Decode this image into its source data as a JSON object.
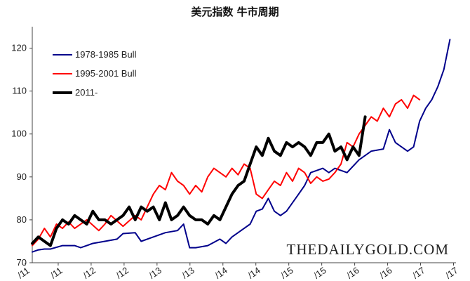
{
  "chart_data": {
    "type": "line",
    "title": "美元指数 牛市周期",
    "ylim": [
      70,
      125
    ],
    "y_ticks": [
      70,
      80,
      90,
      100,
      110,
      120
    ],
    "x_tick_labels": [
      "/11",
      "/11",
      "/12",
      "/12",
      "/13",
      "/13",
      "/14",
      "/14",
      "/15",
      "/15",
      "/16",
      "/16",
      "/17",
      "/17"
    ],
    "xlim": [
      0,
      140
    ],
    "grid": false,
    "legend_position": "top-left",
    "watermark": "THEDAILYGOLD.COM",
    "series": [
      {
        "name": "1978-1985 Bull",
        "color": "#00008B",
        "width": 2,
        "x": [
          0,
          2,
          4,
          6,
          10,
          14,
          16,
          20,
          24,
          28,
          30,
          34,
          36,
          40,
          44,
          48,
          50,
          52,
          54,
          58,
          62,
          64,
          66,
          70,
          72,
          74,
          76,
          78,
          80,
          82,
          84,
          88,
          90,
          92,
          94,
          96,
          98,
          100,
          104,
          108,
          110,
          112,
          116,
          118,
          120,
          122,
          124,
          126,
          128,
          130,
          132,
          134,
          136,
          138
        ],
        "y": [
          72.5,
          73,
          73.2,
          73.2,
          74,
          74,
          73.5,
          74.5,
          75,
          75.5,
          76.8,
          77,
          75,
          76,
          77,
          77.5,
          79,
          73.5,
          73.5,
          74,
          75.5,
          74.5,
          76,
          78,
          79,
          82,
          82.5,
          85,
          82,
          81,
          82,
          86,
          88,
          91,
          91.5,
          92,
          91,
          92,
          91,
          94,
          95,
          96,
          96.5,
          101,
          98,
          97,
          96,
          97,
          103,
          106,
          108,
          111,
          115,
          122
        ]
      },
      {
        "name": "1995-2001 Bull",
        "color": "#FF0000",
        "width": 2,
        "x": [
          0,
          2,
          4,
          6,
          8,
          10,
          12,
          14,
          18,
          22,
          24,
          26,
          30,
          34,
          36,
          38,
          40,
          42,
          44,
          46,
          48,
          50,
          52,
          54,
          56,
          58,
          60,
          62,
          64,
          66,
          68,
          70,
          72,
          74,
          76,
          78,
          80,
          82,
          84,
          86,
          88,
          90,
          92,
          94,
          96,
          98,
          100,
          102,
          104,
          106,
          108,
          110,
          112,
          114,
          116,
          118,
          120,
          122,
          124,
          126,
          128
        ],
        "y": [
          74,
          75.5,
          78,
          76,
          79,
          78,
          79.5,
          78,
          80,
          77.5,
          79,
          81,
          78.5,
          81,
          80,
          83,
          86,
          88,
          87,
          91,
          89,
          88,
          86,
          88,
          86.5,
          90,
          92,
          91,
          90,
          92,
          90.5,
          93,
          92,
          86,
          85,
          87,
          89,
          88,
          91,
          89,
          92,
          91,
          88.5,
          90,
          89,
          89.5,
          91,
          93,
          98,
          97,
          100,
          102,
          104,
          103,
          106,
          104,
          107,
          108,
          106,
          109,
          108
        ]
      },
      {
        "name": "2011-",
        "color": "#000000",
        "width": 4,
        "x": [
          0,
          2,
          4,
          6,
          8,
          10,
          12,
          14,
          16,
          18,
          20,
          22,
          24,
          26,
          28,
          30,
          32,
          34,
          36,
          38,
          40,
          42,
          44,
          46,
          48,
          50,
          52,
          54,
          56,
          58,
          60,
          62,
          64,
          66,
          68,
          70,
          72,
          74,
          76,
          78,
          80,
          82,
          84,
          86,
          88,
          90,
          92,
          94,
          96,
          98,
          100,
          102,
          104,
          106,
          108,
          110
        ],
        "y": [
          74.5,
          76,
          75,
          74,
          78,
          80,
          79,
          81,
          80,
          79,
          82,
          80,
          80,
          79,
          80,
          81,
          83,
          80,
          83,
          82,
          83,
          80,
          84,
          80,
          81,
          83,
          81,
          80,
          80,
          79,
          81,
          80,
          83,
          86,
          88,
          89,
          93,
          97,
          95,
          99,
          96,
          95,
          98,
          97,
          98,
          97,
          95,
          98,
          98,
          100,
          96,
          97,
          94,
          97,
          95,
          104
        ]
      }
    ]
  }
}
